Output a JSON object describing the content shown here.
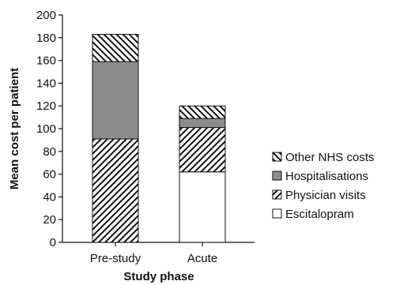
{
  "chart_data": {
    "type": "bar",
    "stacked": true,
    "title": "",
    "xlabel": "Study phase",
    "ylabel": "Mean cost per patient",
    "ylim": [
      0,
      200
    ],
    "y_ticks": [
      0,
      20,
      40,
      60,
      80,
      100,
      120,
      140,
      160,
      180,
      200
    ],
    "categories": [
      "Pre-study",
      "Acute"
    ],
    "series": [
      {
        "name": "Escitalopram",
        "values": [
          0,
          62
        ],
        "color": "#ffffff",
        "pattern": "none"
      },
      {
        "name": "Physician visits",
        "values": [
          91,
          39
        ],
        "color": "#ffffff",
        "pattern": "hatch-forward"
      },
      {
        "name": "Hospitalisations",
        "values": [
          68,
          8
        ],
        "color": "#8c8c8c",
        "pattern": "solid"
      },
      {
        "name": "Other NHS costs",
        "values": [
          24,
          11
        ],
        "color": "#ffffff",
        "pattern": "hatch-backward"
      }
    ],
    "legend_position": "right",
    "legend_order": [
      "Other NHS costs",
      "Hospitalisations",
      "Physician visits",
      "Escitalopram"
    ],
    "grid": false
  }
}
